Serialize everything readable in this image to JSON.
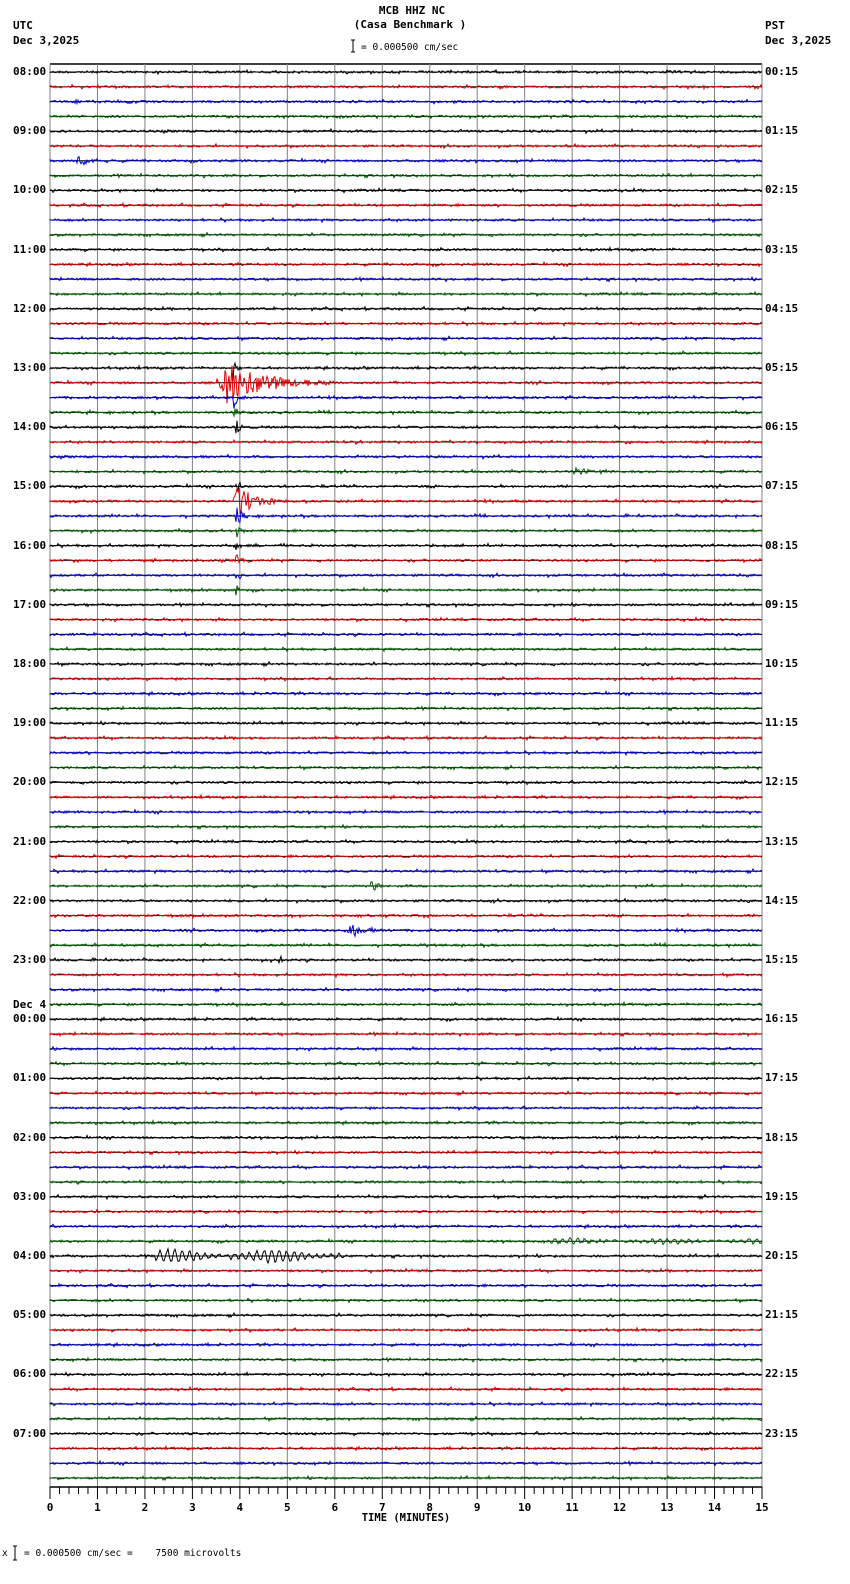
{
  "header": {
    "station": "MCB HHZ NC",
    "site": "(Casa Benchmark )",
    "left_tz": "UTC",
    "left_date": "Dec 3,2025",
    "right_tz": "PST",
    "right_date": "Dec 3,2025",
    "scale_text": "= 0.000500 cm/sec"
  },
  "footer": {
    "scale_prefix": "x",
    "scale_text": "= 0.000500 cm/sec =    7500 microvolts"
  },
  "colors": {
    "trace_cycle": [
      "#000000",
      "#e00000",
      "#0000d0",
      "#006000"
    ],
    "grid": "#808080",
    "baseline": "#000000"
  },
  "chart_data": {
    "type": "line",
    "title": "MCB HHZ NC (Casa Benchmark )",
    "subtitle": "Helicorder 24h, 15-minute lines",
    "xlabel": "TIME (MINUTES)",
    "ylabel": "",
    "x_ticks": [
      0,
      1,
      2,
      3,
      4,
      5,
      6,
      7,
      8,
      9,
      10,
      11,
      12,
      13,
      14,
      15
    ],
    "xlim": [
      0,
      15
    ],
    "minor_ticks_per_minute": 5,
    "grid": true,
    "lines_per_hour": 4,
    "num_lines": 96,
    "utc_labels": [
      "08:00",
      "09:00",
      "10:00",
      "11:00",
      "12:00",
      "13:00",
      "14:00",
      "15:00",
      "16:00",
      "17:00",
      "18:00",
      "19:00",
      "20:00",
      "21:00",
      "22:00",
      "23:00",
      "00:00",
      "01:00",
      "02:00",
      "03:00",
      "04:00",
      "05:00",
      "06:00",
      "07:00"
    ],
    "utc_date_change": {
      "label": "Dec 4",
      "at_hour_index": 16
    },
    "pst_labels": [
      "00:15",
      "01:15",
      "02:15",
      "03:15",
      "04:15",
      "05:15",
      "06:15",
      "07:15",
      "08:15",
      "09:15",
      "10:15",
      "11:15",
      "12:15",
      "13:15",
      "14:15",
      "15:15",
      "16:15",
      "17:15",
      "18:15",
      "19:15",
      "20:15",
      "21:15",
      "22:15",
      "23:15"
    ],
    "scale": "0.000500 cm/sec = 7500 microvolts",
    "events": [
      {
        "line": 2,
        "start_min": 0.5,
        "dur_min": 0.6,
        "amp": 3,
        "desc": "small blue burst 08:30"
      },
      {
        "line": 6,
        "start_min": 0.55,
        "dur_min": 0.7,
        "amp": 7,
        "desc": "blue burst 09:30"
      },
      {
        "line": 21,
        "start_min": 3.5,
        "dur_min": 2.5,
        "amp": 28,
        "desc": "large event 13:15 onset"
      },
      {
        "line": 20,
        "start_min": 3.85,
        "dur_min": 0.2,
        "amp": 26,
        "desc": "spike 13:00"
      },
      {
        "line": 22,
        "start_min": 3.85,
        "dur_min": 0.3,
        "amp": 16,
        "desc": "coda 13:30"
      },
      {
        "line": 23,
        "start_min": 3.85,
        "dur_min": 0.3,
        "amp": 14,
        "desc": "coda 13:45"
      },
      {
        "line": 24,
        "start_min": 3.9,
        "dur_min": 0.2,
        "amp": 12,
        "desc": "coda 14:00"
      },
      {
        "line": 21,
        "start_min": 7.2,
        "dur_min": 0.3,
        "amp": 3,
        "desc": "small 13:15"
      },
      {
        "line": 25,
        "start_min": 6.4,
        "dur_min": 0.4,
        "amp": 3,
        "desc": "small 14:15"
      },
      {
        "line": 27,
        "start_min": 11.0,
        "dur_min": 1.2,
        "amp": 3,
        "desc": "small green 14:45"
      },
      {
        "line": 28,
        "start_min": 3.9,
        "dur_min": 0.25,
        "amp": 14,
        "desc": "15:00 spike"
      },
      {
        "line": 29,
        "start_min": 3.85,
        "dur_min": 1.3,
        "amp": 20,
        "desc": "15:15 event"
      },
      {
        "line": 30,
        "start_min": 3.9,
        "dur_min": 0.3,
        "amp": 16,
        "desc": "15:30"
      },
      {
        "line": 31,
        "start_min": 3.9,
        "dur_min": 0.2,
        "amp": 14,
        "desc": "15:45"
      },
      {
        "line": 32,
        "start_min": 3.9,
        "dur_min": 0.2,
        "amp": 12,
        "desc": "16:00"
      },
      {
        "line": 33,
        "start_min": 3.9,
        "dur_min": 0.2,
        "amp": 12,
        "desc": "16:15"
      },
      {
        "line": 34,
        "start_min": 3.9,
        "dur_min": 0.2,
        "amp": 12,
        "desc": "16:30"
      },
      {
        "line": 35,
        "start_min": 3.9,
        "dur_min": 0.15,
        "amp": 10,
        "desc": "16:45"
      },
      {
        "line": 55,
        "start_min": 6.75,
        "dur_min": 0.35,
        "amp": 8,
        "desc": "green burst 21:45"
      },
      {
        "line": 58,
        "start_min": 6.2,
        "dur_min": 1.1,
        "amp": 10,
        "desc": "blue burst 22:30"
      },
      {
        "line": 59,
        "start_min": 7.8,
        "dur_min": 0.8,
        "amp": 3,
        "desc": "small green 22:45"
      },
      {
        "line": 60,
        "start_min": 4.8,
        "dur_min": 0.3,
        "amp": 4,
        "desc": "small black 23:00"
      },
      {
        "line": 80,
        "start_min": 2.2,
        "dur_min": 4.0,
        "amp": 6,
        "long_period": true,
        "desc": "surface waves 04:00"
      },
      {
        "line": 79,
        "start_min": 10.5,
        "dur_min": 4.5,
        "amp": 2.5,
        "long_period": true,
        "desc": "long-period green 03:45"
      }
    ]
  }
}
